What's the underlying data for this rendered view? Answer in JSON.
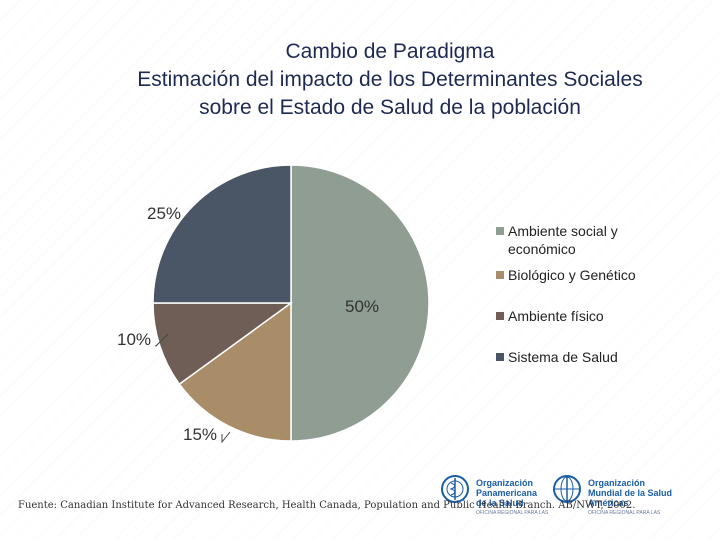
{
  "title": {
    "line1": "Cambio de Paradigma",
    "line2": "Estimación del impacto de los Determinantes Sociales",
    "line3": "sobre el Estado de Salud de la población"
  },
  "chart_data": {
    "type": "pie",
    "title": "Estimación del impacto de los Determinantes Sociales sobre el Estado de Salud de la población",
    "categories": [
      "Ambiente social y económico",
      "Biológico y Genético",
      "Ambiente físico",
      "Sistema de Salud"
    ],
    "values": [
      50,
      15,
      10,
      25
    ],
    "labels": [
      "50%",
      "15%",
      "10%",
      "25%"
    ],
    "colors": [
      "#8f9d93",
      "#a98d68",
      "#6e5e55",
      "#4a5566"
    ],
    "legend_position": "right"
  },
  "legend": {
    "items": [
      {
        "label": "Ambiente social y económico",
        "color": "#8f9d93"
      },
      {
        "label": "Biológico y Genético",
        "color": "#a98d68"
      },
      {
        "label": "Ambiente físico",
        "color": "#6e5e55"
      },
      {
        "label": "Sistema de Salud",
        "color": "#4a5566"
      }
    ]
  },
  "source": "Fuente: Canadian Institute for Advanced Research, Health Canada, Population and Public Health Branch. AB/NWT, 2002.",
  "logos": {
    "paho": {
      "line1": "Organización",
      "line2": "Panamericana",
      "line3": "de la Salud",
      "sub": "OFICINA REGIONAL PARA LAS"
    },
    "who": {
      "line1": "Organización",
      "line2": "Mundial de la Salud",
      "line3": "Américas",
      "sub": "OFICINA REGIONAL PARA LAS"
    }
  }
}
